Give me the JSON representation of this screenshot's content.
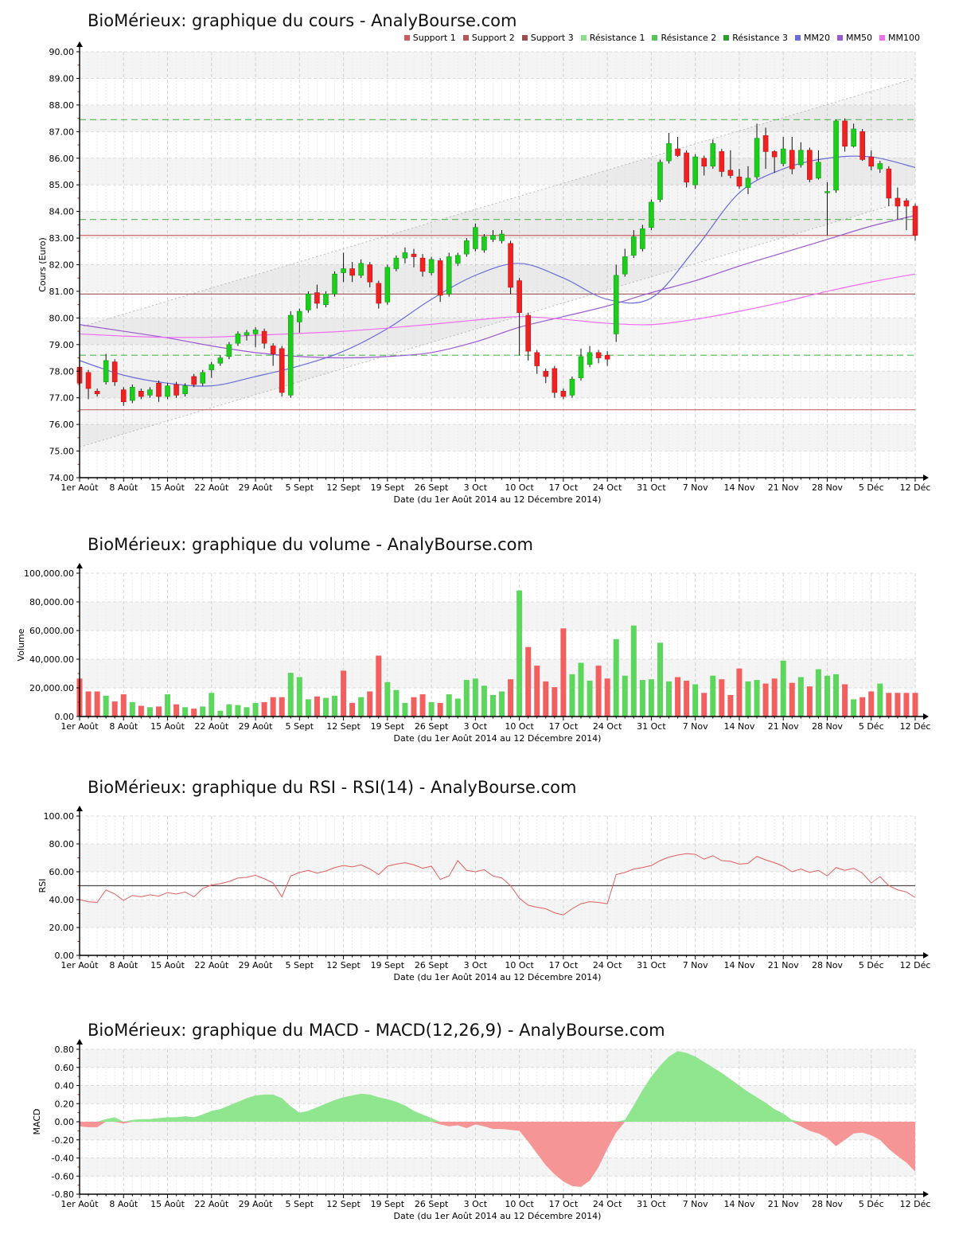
{
  "x_axis_note": "weekly ticks, 96 trading sessions",
  "chart_data": [
    {
      "type": "candlestick",
      "title": "BioMérieux: graphique du cours - AnalyBourse.com",
      "ylabel": "Cours (Euro)",
      "xlabel": "Date (du 1er Août 2014 au 12 Décembre 2014)",
      "ylim": [
        74,
        90
      ],
      "ystep": 1,
      "x_tick_labels": [
        "1er Août",
        "8 Août",
        "15 Août",
        "22 Août",
        "29 Août",
        "5 Sept",
        "12 Sept",
        "19 Sept",
        "26 Sept",
        "3 Oct",
        "10 Oct",
        "17 Oct",
        "24 Oct",
        "31 Oct",
        "7 Nov",
        "14 Nov",
        "21 Nov",
        "28 Nov",
        "5 Déc",
        "12 Déc"
      ],
      "legend": [
        {
          "label": "Support 1",
          "color": "#cd5c5c"
        },
        {
          "label": "Support 2",
          "color": "#b35656"
        },
        {
          "label": "Support 3",
          "color": "#9c4f4f"
        },
        {
          "label": "Résistance 1",
          "color": "#8ae08a"
        },
        {
          "label": "Résistance 2",
          "color": "#55c655"
        },
        {
          "label": "Résistance 3",
          "color": "#2f9e2f"
        },
        {
          "label": "MM20",
          "color": "#6b6bdb"
        },
        {
          "label": "MM50",
          "color": "#9b59d0"
        },
        {
          "label": "MM100",
          "color": "#f06df0"
        }
      ],
      "levels": [
        {
          "label": "Support 1",
          "value": 83.1,
          "color": "#cd5c5c",
          "style": "solid"
        },
        {
          "label": "Support 2",
          "value": 80.9,
          "color": "#9a5252",
          "style": "solid"
        },
        {
          "label": "Support 3",
          "value": 76.55,
          "color": "#c26a6a",
          "style": "solid"
        },
        {
          "label": "Résistance 1",
          "value": 78.6,
          "color": "#55b555",
          "style": "dashed"
        },
        {
          "label": "Résistance 2",
          "value": 83.7,
          "color": "#55b555",
          "style": "dashed"
        },
        {
          "label": "Résistance 3",
          "value": 87.45,
          "color": "#55b555",
          "style": "dashed"
        }
      ],
      "channel": {
        "color": "#b8b8b8",
        "upper": [
          79.65,
          89.0
        ],
        "lower": [
          75.15,
          84.5
        ]
      },
      "mm20": {
        "color": "#6b6bdb",
        "values": [
          78.4,
          77.85,
          77.55,
          77.45,
          77.8,
          78.2,
          78.75,
          79.6,
          80.7,
          81.6,
          82.05,
          81.5,
          80.7,
          80.75,
          82.6,
          84.7,
          85.6,
          86.0,
          86.05,
          85.65
        ]
      },
      "mm50": {
        "color": "#9b59d0",
        "values": [
          79.75,
          79.5,
          79.25,
          78.95,
          78.7,
          78.55,
          78.5,
          78.55,
          78.7,
          79.1,
          79.65,
          80.05,
          80.45,
          80.95,
          81.4,
          81.95,
          82.45,
          82.95,
          83.45,
          83.85
        ]
      },
      "mm100": {
        "color": "#f06df0",
        "values": [
          79.4,
          79.32,
          79.27,
          79.28,
          79.35,
          79.42,
          79.5,
          79.62,
          79.76,
          79.92,
          80.05,
          79.95,
          79.8,
          79.75,
          79.95,
          80.25,
          80.6,
          81.0,
          81.35,
          81.65
        ]
      },
      "up_color": "#1ecc1e",
      "down_color": "#ee2222",
      "ohlc": [
        [
          78.15,
          78.25,
          77.3,
          77.55
        ],
        [
          77.95,
          78.05,
          76.95,
          77.35
        ],
        [
          77.25,
          77.35,
          77.05,
          77.15
        ],
        [
          77.6,
          78.65,
          77.5,
          78.4
        ],
        [
          78.35,
          78.45,
          77.45,
          77.6
        ],
        [
          77.3,
          77.4,
          76.7,
          76.85
        ],
        [
          76.9,
          77.5,
          76.8,
          77.4
        ],
        [
          77.25,
          77.35,
          76.95,
          77.05
        ],
        [
          77.1,
          77.4,
          77.0,
          77.3
        ],
        [
          77.55,
          77.65,
          76.85,
          77.05
        ],
        [
          77.05,
          77.55,
          76.95,
          77.45
        ],
        [
          77.5,
          77.6,
          77.0,
          77.1
        ],
        [
          77.15,
          77.55,
          77.05,
          77.45
        ],
        [
          77.8,
          77.9,
          77.4,
          77.5
        ],
        [
          77.55,
          78.05,
          77.45,
          77.95
        ],
        [
          78.05,
          78.35,
          77.75,
          78.25
        ],
        [
          78.3,
          78.6,
          78.2,
          78.5
        ],
        [
          78.55,
          79.1,
          78.45,
          79.0
        ],
        [
          79.05,
          79.5,
          78.95,
          79.4
        ],
        [
          79.35,
          79.55,
          79.15,
          79.45
        ],
        [
          79.4,
          79.65,
          78.9,
          79.55
        ],
        [
          79.5,
          79.6,
          78.85,
          79.05
        ],
        [
          78.95,
          79.05,
          78.2,
          78.65
        ],
        [
          78.85,
          78.95,
          77.05,
          77.2
        ],
        [
          77.1,
          80.25,
          77.0,
          80.1
        ],
        [
          79.85,
          80.35,
          79.45,
          80.25
        ],
        [
          80.3,
          81.0,
          80.2,
          80.9
        ],
        [
          80.95,
          81.25,
          80.35,
          80.55
        ],
        [
          80.5,
          81.0,
          80.4,
          80.9
        ],
        [
          80.9,
          81.75,
          80.8,
          81.65
        ],
        [
          81.7,
          82.45,
          81.35,
          81.85
        ],
        [
          81.85,
          82.1,
          81.35,
          81.6
        ],
        [
          81.6,
          82.2,
          81.5,
          82.05
        ],
        [
          82.0,
          82.1,
          81.15,
          81.35
        ],
        [
          81.3,
          81.4,
          80.35,
          80.55
        ],
        [
          80.6,
          82.0,
          80.5,
          81.9
        ],
        [
          81.85,
          82.35,
          81.75,
          82.25
        ],
        [
          82.25,
          82.65,
          82.05,
          82.45
        ],
        [
          82.4,
          82.6,
          81.9,
          82.3
        ],
        [
          82.25,
          82.4,
          81.55,
          81.75
        ],
        [
          81.7,
          82.3,
          81.6,
          82.2
        ],
        [
          82.15,
          82.25,
          80.6,
          80.85
        ],
        [
          80.9,
          82.45,
          80.8,
          82.3
        ],
        [
          82.05,
          82.45,
          81.95,
          82.35
        ],
        [
          82.4,
          83.0,
          82.3,
          82.9
        ],
        [
          82.6,
          83.55,
          82.5,
          83.4
        ],
        [
          82.55,
          83.15,
          82.45,
          83.05
        ],
        [
          82.95,
          83.3,
          82.85,
          83.1
        ],
        [
          82.9,
          83.3,
          82.8,
          83.15
        ],
        [
          82.8,
          82.9,
          80.9,
          81.15
        ],
        [
          81.4,
          81.5,
          78.6,
          80.2
        ],
        [
          80.1,
          80.2,
          78.4,
          78.75
        ],
        [
          78.7,
          78.8,
          77.9,
          78.2
        ],
        [
          78.0,
          78.1,
          77.55,
          77.8
        ],
        [
          78.1,
          78.2,
          77.0,
          77.2
        ],
        [
          77.25,
          77.35,
          76.95,
          77.05
        ],
        [
          77.1,
          77.8,
          77.0,
          77.7
        ],
        [
          77.75,
          78.85,
          77.65,
          78.55
        ],
        [
          78.25,
          78.95,
          78.15,
          78.7
        ],
        [
          78.7,
          78.8,
          78.3,
          78.5
        ],
        [
          78.6,
          78.75,
          78.2,
          78.45
        ],
        [
          79.4,
          82.0,
          79.1,
          81.6
        ],
        [
          81.65,
          82.6,
          81.55,
          82.3
        ],
        [
          82.35,
          83.3,
          82.25,
          83.05
        ],
        [
          82.6,
          83.5,
          82.5,
          83.35
        ],
        [
          83.4,
          84.45,
          83.3,
          84.35
        ],
        [
          84.45,
          85.95,
          84.35,
          85.85
        ],
        [
          85.9,
          86.95,
          85.8,
          86.55
        ],
        [
          86.35,
          86.8,
          86.05,
          86.1
        ],
        [
          86.2,
          86.3,
          84.9,
          85.1
        ],
        [
          85.0,
          86.15,
          84.85,
          86.05
        ],
        [
          86.0,
          86.1,
          85.35,
          85.7
        ],
        [
          85.7,
          86.7,
          85.6,
          86.55
        ],
        [
          86.25,
          86.35,
          85.3,
          85.5
        ],
        [
          85.55,
          86.3,
          85.25,
          85.35
        ],
        [
          85.3,
          85.6,
          84.85,
          84.95
        ],
        [
          84.9,
          85.7,
          84.65,
          85.25
        ],
        [
          85.3,
          87.3,
          85.2,
          86.75
        ],
        [
          86.85,
          87.15,
          85.6,
          86.25
        ],
        [
          86.25,
          86.3,
          85.45,
          86.05
        ],
        [
          85.8,
          86.8,
          85.7,
          86.35
        ],
        [
          86.3,
          86.8,
          85.4,
          85.6
        ],
        [
          85.75,
          86.6,
          85.65,
          86.3
        ],
        [
          86.3,
          86.4,
          85.1,
          85.2
        ],
        [
          85.25,
          86.3,
          85.2,
          85.85
        ],
        [
          84.7,
          85.1,
          83.1,
          84.75
        ],
        [
          84.8,
          87.45,
          84.7,
          87.4
        ],
        [
          87.4,
          87.5,
          86.25,
          86.45
        ],
        [
          86.45,
          87.3,
          86.4,
          87.1
        ],
        [
          87.0,
          87.1,
          85.9,
          85.95
        ],
        [
          86.05,
          86.3,
          85.55,
          85.7
        ],
        [
          85.6,
          85.9,
          85.45,
          85.8
        ],
        [
          85.6,
          85.7,
          84.2,
          84.5
        ],
        [
          84.5,
          84.9,
          83.7,
          84.2
        ],
        [
          84.4,
          84.5,
          83.3,
          84.2
        ],
        [
          84.2,
          84.3,
          82.9,
          83.1
        ]
      ]
    },
    {
      "type": "bar",
      "title": "BioMérieux: graphique du volume - AnalyBourse.com",
      "ylabel": "Volume",
      "xlabel": "Date (du 1er Août 2014 au 12 Décembre 2014)",
      "ylim": [
        0,
        100000
      ],
      "ystep": 20000,
      "x_tick_labels": [
        "1er Août",
        "8 Août",
        "15 Août",
        "22 Août",
        "29 Août",
        "5 Sept",
        "12 Sept",
        "19 Sept",
        "26 Sept",
        "3 Oct",
        "10 Oct",
        "17 Oct",
        "24 Oct",
        "31 Oct",
        "7 Nov",
        "14 Nov",
        "21 Nov",
        "28 Nov",
        "5 Déc",
        "12 Déc"
      ],
      "up_color": "#5cd65c",
      "down_color": "#f25f5f",
      "values": [
        26500,
        17500,
        17500,
        14500,
        10500,
        15500,
        10000,
        7500,
        6500,
        7000,
        15500,
        8500,
        6500,
        5500,
        7000,
        16500,
        4000,
        8500,
        8000,
        6500,
        9500,
        10000,
        13500,
        13500,
        30500,
        27500,
        12000,
        14000,
        13000,
        14500,
        32000,
        9500,
        13500,
        17500,
        42500,
        24000,
        18500,
        9500,
        13500,
        15500,
        10000,
        9500,
        15500,
        12500,
        25500,
        26500,
        21500,
        15000,
        17500,
        26000,
        88000,
        48500,
        35500,
        24500,
        20500,
        61500,
        29500,
        37500,
        25000,
        35500,
        26500,
        54000,
        28500,
        63500,
        25500,
        26000,
        51500,
        24500,
        27500,
        25000,
        22500,
        16500,
        28500,
        26000,
        15000,
        33500,
        24500,
        25500,
        23000,
        26500,
        39000,
        23500,
        27500,
        21000,
        33000,
        28500,
        29500,
        22500,
        12000,
        13500,
        17500,
        23000,
        16500,
        16500,
        16500,
        16500
      ],
      "up": [
        0,
        0,
        0,
        1,
        0,
        0,
        1,
        0,
        1,
        0,
        1,
        0,
        1,
        0,
        1,
        1,
        1,
        1,
        1,
        1,
        1,
        0,
        0,
        0,
        1,
        1,
        1,
        0,
        1,
        1,
        0,
        0,
        1,
        0,
        0,
        1,
        1,
        1,
        0,
        0,
        1,
        0,
        1,
        1,
        1,
        1,
        1,
        1,
        1,
        0,
        1,
        0,
        0,
        0,
        0,
        0,
        1,
        1,
        1,
        0,
        0,
        1,
        1,
        1,
        1,
        1,
        1,
        1,
        0,
        0,
        1,
        0,
        1,
        0,
        0,
        0,
        1,
        1,
        0,
        0,
        1,
        0,
        1,
        0,
        1,
        1,
        1,
        0,
        1,
        0,
        0,
        1,
        0,
        0,
        0,
        0
      ]
    },
    {
      "type": "line",
      "title": "BioMérieux: graphique du RSI - RSI(14) - AnalyBourse.com",
      "ylabel": "RSI",
      "xlabel": "Date (du 1er Août 2014 au 12 Décembre 2014)",
      "ylim": [
        0,
        100
      ],
      "ystep": 20,
      "x_tick_labels": [
        "1er Août",
        "8 Août",
        "15 Août",
        "22 Août",
        "29 Août",
        "5 Sept",
        "12 Sept",
        "19 Sept",
        "26 Sept",
        "3 Oct",
        "10 Oct",
        "17 Oct",
        "24 Oct",
        "31 Oct",
        "7 Nov",
        "14 Nov",
        "21 Nov",
        "28 Nov",
        "5 Déc",
        "12 Déc"
      ],
      "color": "#e05f5f",
      "hline": {
        "value": 50,
        "color": "#4d4d4d"
      },
      "values": [
        40,
        38.5,
        38,
        47,
        44,
        39.5,
        43,
        42,
        43.5,
        42.5,
        45,
        44,
        45.5,
        42,
        48,
        50.5,
        51.5,
        53,
        55.5,
        56,
        57.5,
        55,
        52,
        42,
        57,
        59.5,
        61,
        59,
        60.5,
        63,
        64.5,
        63.5,
        65,
        62,
        58,
        64,
        65.5,
        66.5,
        65,
        62.5,
        64,
        54.5,
        57,
        68,
        61,
        60,
        61.5,
        57,
        55.5,
        50,
        41,
        36,
        34.5,
        33.5,
        30.5,
        29,
        33.5,
        37,
        38.5,
        38,
        37,
        58,
        59.5,
        62,
        63,
        64.5,
        68,
        70.5,
        72,
        73,
        72.5,
        69,
        71.5,
        68,
        67.5,
        65.5,
        66,
        71,
        68.5,
        66.5,
        64,
        60,
        62,
        59.5,
        61,
        57,
        63,
        61,
        62.5,
        59,
        52,
        56.5,
        50,
        47,
        45.5,
        41.5
      ]
    },
    {
      "type": "area",
      "title": "BioMérieux: graphique du MACD - MACD(12,26,9) - AnalyBourse.com",
      "ylabel": "MACD",
      "xlabel": "Date (du 1er Août 2014 au 12 Décembre 2014)",
      "ylim": [
        -0.8,
        0.8
      ],
      "ystep": 0.2,
      "x_tick_labels": [
        "1er Août",
        "8 Août",
        "15 Août",
        "22 Août",
        "29 Août",
        "5 Sept",
        "12 Sept",
        "19 Sept",
        "26 Sept",
        "3 Oct",
        "10 Oct",
        "17 Oct",
        "24 Oct",
        "31 Oct",
        "7 Nov",
        "14 Nov",
        "21 Nov",
        "28 Nov",
        "5 Déc",
        "12 Déc"
      ],
      "pos_color": "#8fe68f",
      "neg_color": "#f59595",
      "values": [
        -0.05,
        -0.06,
        -0.06,
        0.03,
        0.05,
        -0.02,
        0.02,
        0.03,
        0.03,
        0.04,
        0.05,
        0.05,
        0.06,
        0.05,
        0.08,
        0.12,
        0.14,
        0.18,
        0.22,
        0.26,
        0.29,
        0.3,
        0.3,
        0.26,
        0.17,
        0.1,
        0.12,
        0.16,
        0.2,
        0.24,
        0.27,
        0.29,
        0.31,
        0.3,
        0.27,
        0.25,
        0.22,
        0.18,
        0.12,
        0.08,
        0.04,
        -0.03,
        -0.05,
        -0.04,
        -0.07,
        -0.03,
        -0.05,
        -0.08,
        -0.08,
        -0.09,
        -0.1,
        -0.22,
        -0.35,
        -0.48,
        -0.58,
        -0.66,
        -0.71,
        -0.72,
        -0.65,
        -0.5,
        -0.3,
        -0.12,
        0.02,
        0.18,
        0.35,
        0.5,
        0.62,
        0.72,
        0.78,
        0.76,
        0.72,
        0.66,
        0.6,
        0.54,
        0.47,
        0.4,
        0.33,
        0.27,
        0.21,
        0.14,
        0.09,
        0.02,
        -0.05,
        -0.1,
        -0.13,
        -0.18,
        -0.27,
        -0.2,
        -0.13,
        -0.12,
        -0.15,
        -0.2,
        -0.3,
        -0.38,
        -0.45,
        -0.55
      ]
    }
  ]
}
